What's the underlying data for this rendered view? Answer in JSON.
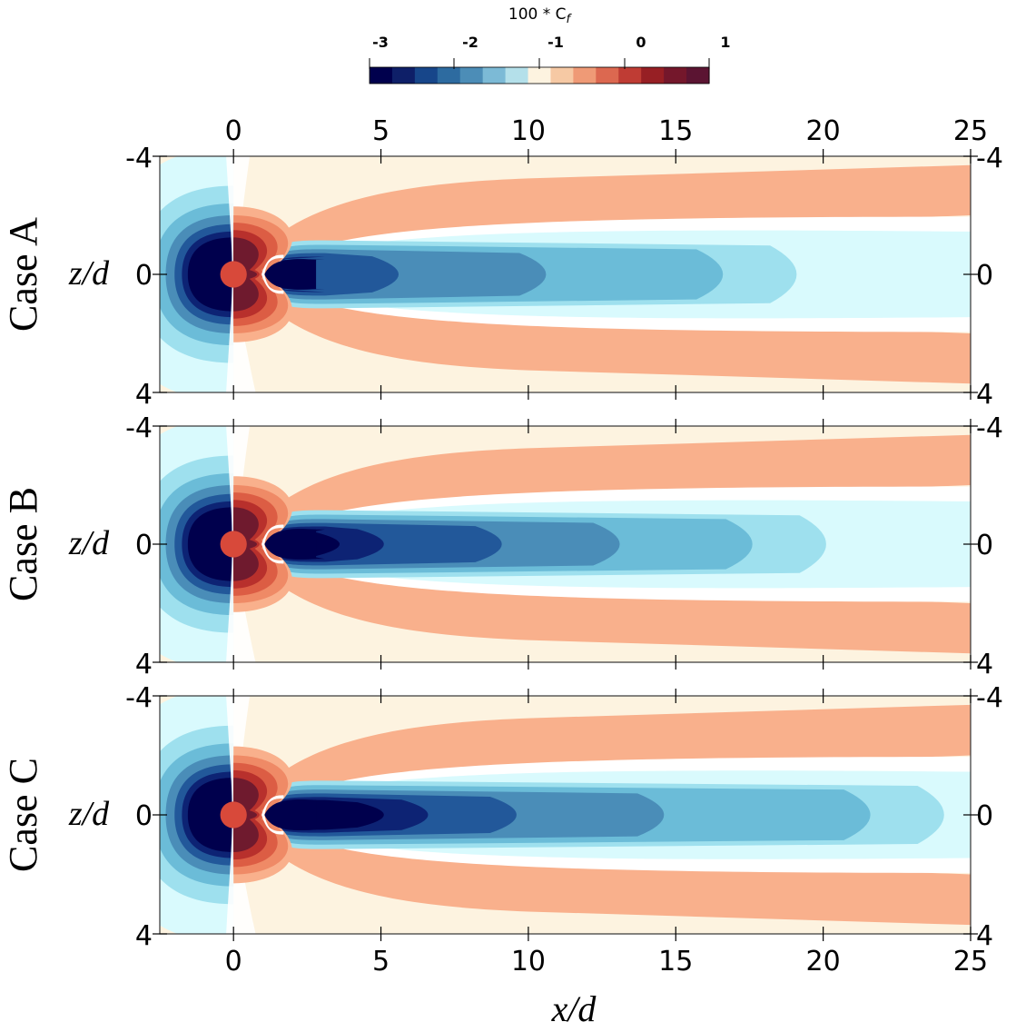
{
  "chart_data": {
    "type": "heatmap",
    "colorbar": {
      "title": "100 * C",
      "title_subscript": "f",
      "ticks": [
        "-3",
        "-2",
        "-1",
        "0",
        "1"
      ],
      "range": [
        -3.5,
        1
      ],
      "levels": [
        "#00004d",
        "#0e1f68",
        "#17468a",
        "#2d6ba0",
        "#4c8db7",
        "#7cbad6",
        "#b4e0ea",
        "#fdf3e0",
        "#f6c9a4",
        "#ef9a76",
        "#dc6850",
        "#bf3c34",
        "#971f24",
        "#74172b",
        "#5b1432"
      ]
    },
    "x_axis": {
      "label": "x/d",
      "ticks": [
        "0",
        "5",
        "10",
        "15",
        "20",
        "25"
      ],
      "range": [
        -2.5,
        25
      ]
    },
    "z_axis": {
      "label": "z/d",
      "ticks": [
        "-4",
        "0",
        "4"
      ],
      "range": [
        -4,
        4
      ]
    },
    "panels": [
      {
        "name": "Case A",
        "left_ticks": [
          "-4",
          "0",
          "4"
        ],
        "right_ticks": [
          "-4",
          "0",
          "4"
        ],
        "contour_extent_xd": {
          "dark_core": 3.5,
          "blue_2": 6.5,
          "blue_3": 11.5,
          "blue_4": 17.5,
          "light_cyan": 25
        }
      },
      {
        "name": "Case B",
        "left_ticks": [
          "-4",
          "0",
          "4"
        ],
        "right_ticks": [
          "-4",
          "0",
          "4"
        ],
        "contour_extent_xd": {
          "dark_core": 6.0,
          "blue_2": 10.0,
          "blue_3": 14.0,
          "blue_4": 18.5,
          "light_cyan": 25
        }
      },
      {
        "name": "Case C",
        "left_ticks": [
          "-4",
          "0",
          "4"
        ],
        "right_ticks": [
          "-4",
          "0",
          "4"
        ],
        "contour_extent_xd": {
          "dark_core": 7.5,
          "blue_2": 10.5,
          "blue_3": 15.5,
          "blue_4": 22.5,
          "light_cyan": 25
        }
      }
    ],
    "cylinder_color": "#d8493a",
    "background_colors": {
      "light": "#fdf3e0",
      "salmon": "#f9b08c",
      "cyan": "#d9fafd",
      "sky": "#9ee0ee"
    }
  }
}
